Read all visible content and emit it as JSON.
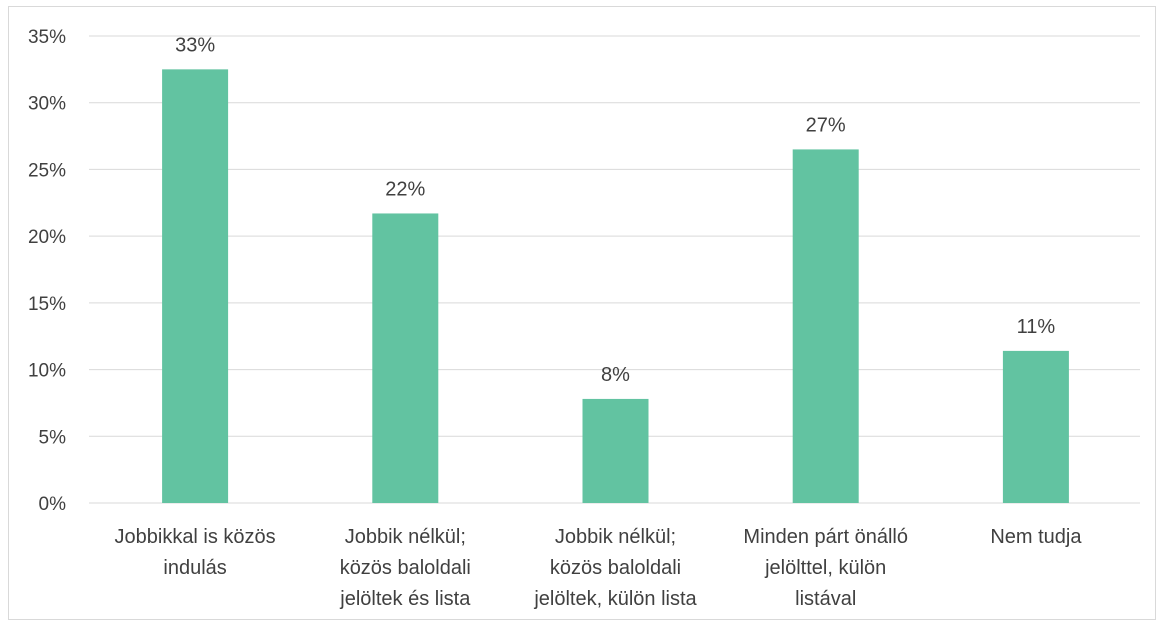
{
  "chart_data": {
    "type": "bar",
    "title": "",
    "xlabel": "",
    "ylabel": "",
    "categories": [
      [
        "Jobbikkal is közös",
        "indulás"
      ],
      [
        "Jobbik nélkül;",
        "közös baloldali",
        "jelöltek és lista"
      ],
      [
        "Jobbik nélkül;",
        "közös baloldali",
        "jelöltek, külön lista"
      ],
      [
        "Minden párt önálló",
        "jelölttel, külön",
        "listával"
      ],
      [
        "Nem tudja"
      ]
    ],
    "values": [
      32.5,
      21.7,
      7.8,
      26.5,
      11.4
    ],
    "data_labels": [
      "33%",
      "22%",
      "8%",
      "27%",
      "11%"
    ],
    "ylim": [
      0,
      35
    ],
    "yticks": [
      0,
      5,
      10,
      15,
      20,
      25,
      30,
      35
    ],
    "ytick_labels": [
      "0%",
      "5%",
      "10%",
      "15%",
      "20%",
      "25%",
      "30%",
      "35%"
    ],
    "grid": true,
    "legend": "none",
    "bar_color": "#62c3a1",
    "grid_color": "#d9d9d9",
    "axis_color": "#d9d9d9",
    "text_color": "#404040"
  }
}
